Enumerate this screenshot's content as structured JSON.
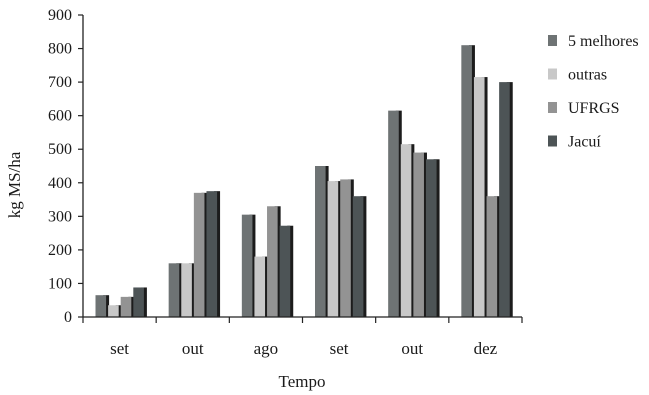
{
  "chart_data": {
    "type": "bar",
    "title": "",
    "xlabel": "Tempo",
    "ylabel": "kg MS/ha",
    "ylim": [
      0,
      900
    ],
    "yticks": [
      "0",
      "100",
      "200",
      "300",
      "400",
      "500",
      "600",
      "700",
      "800",
      "900"
    ],
    "categories": [
      "set",
      "out",
      "ago",
      "set",
      "out",
      "dez"
    ],
    "series": [
      {
        "name": "5 melhores",
        "color": "#6e7374",
        "values": [
          65,
          160,
          305,
          450,
          615,
          810
        ]
      },
      {
        "name": "outras",
        "color": "#c8c8c8",
        "values": [
          35,
          160,
          180,
          405,
          515,
          715
        ]
      },
      {
        "name": "UFRGS",
        "color": "#939393",
        "values": [
          60,
          370,
          330,
          410,
          490,
          360
        ]
      },
      {
        "name": "Jacuí",
        "color": "#4d5456",
        "values": [
          88,
          375,
          272,
          360,
          470,
          700
        ]
      }
    ],
    "grid": false,
    "legend_position": "right"
  }
}
